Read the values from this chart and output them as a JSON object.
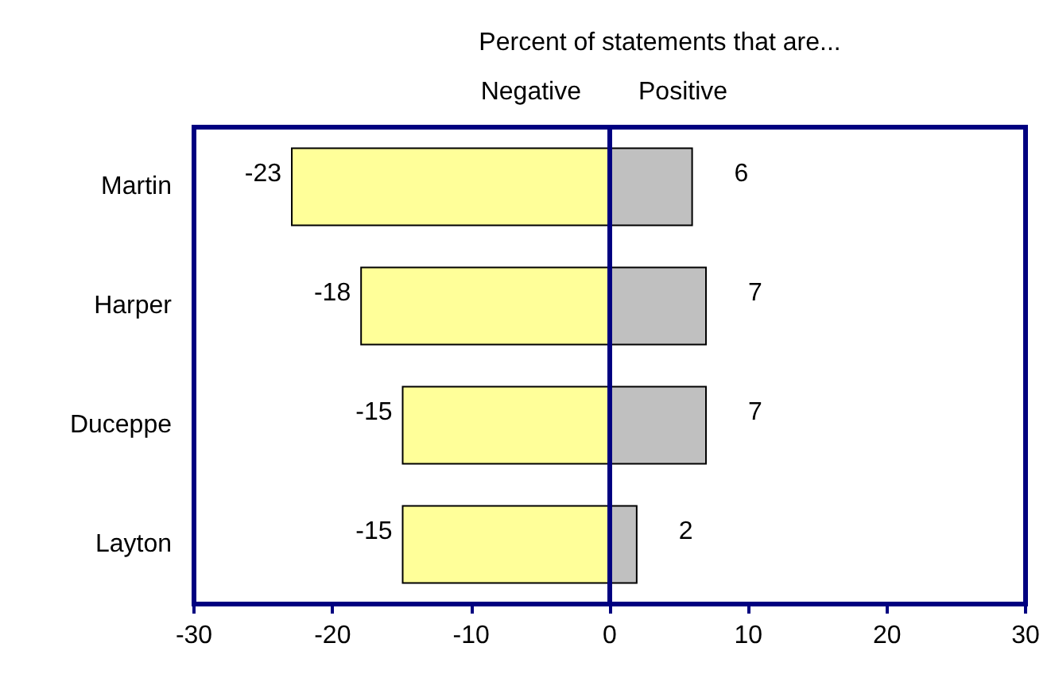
{
  "chart_data": {
    "type": "bar",
    "orientation": "horizontal",
    "stacked": true,
    "title": "Percent of statements that are...",
    "categories": [
      "Martin",
      "Harper",
      "Duceppe",
      "Layton"
    ],
    "series": [
      {
        "name": "Negative",
        "color": "#ffff99",
        "values": [
          -23,
          -18,
          -15,
          -15
        ]
      },
      {
        "name": "Positive",
        "color": "#c0c0c0",
        "values": [
          6,
          7,
          7,
          2
        ]
      }
    ],
    "ref_lines": [
      {
        "axis": "x",
        "value": 0,
        "color": "#000080"
      }
    ],
    "xlim": [
      -30,
      30
    ],
    "xticks": [
      -30,
      -20,
      -10,
      0,
      10,
      20,
      30
    ],
    "grid": false,
    "legend": false,
    "data_labels": true
  }
}
